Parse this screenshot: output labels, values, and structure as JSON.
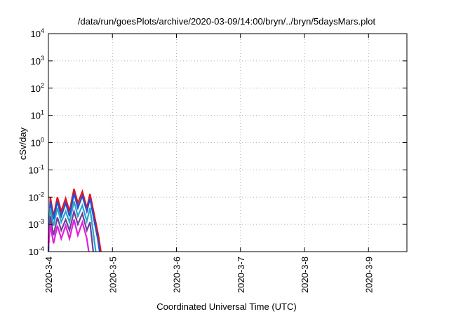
{
  "chart_data": {
    "type": "line",
    "title": "/data/run/goesPlots/archive/2020-03-09/14:00/bryn/../bryn/5daysMars.plot",
    "xlabel": "Coordinated Universal Time (UTC)",
    "ylabel": "cSv/day",
    "yscale": "log",
    "ylim": [
      0.0001,
      10000
    ],
    "xlim": [
      0,
      5.6
    ],
    "x_ticks": [
      {
        "value": 0,
        "label": "2020-3-4"
      },
      {
        "value": 1,
        "label": "2020-3-5"
      },
      {
        "value": 2,
        "label": "2020-3-6"
      },
      {
        "value": 3,
        "label": "2020-3-7"
      },
      {
        "value": 4,
        "label": "2020-3-8"
      },
      {
        "value": 5,
        "label": "2020-3-9"
      }
    ],
    "y_ticks": [
      {
        "value": 0.0001,
        "base": "10",
        "exp": "-4"
      },
      {
        "value": 0.001,
        "base": "10",
        "exp": "-3"
      },
      {
        "value": 0.01,
        "base": "10",
        "exp": "-2"
      },
      {
        "value": 0.1,
        "base": "10",
        "exp": "-1"
      },
      {
        "value": 1,
        "base": "10",
        "exp": "0"
      },
      {
        "value": 10,
        "base": "10",
        "exp": "1"
      },
      {
        "value": 100,
        "base": "10",
        "exp": "2"
      },
      {
        "value": 1000,
        "base": "10",
        "exp": "3"
      },
      {
        "value": 10000,
        "base": "10",
        "exp": "4"
      }
    ],
    "grid": true,
    "legend": "none",
    "series": [
      {
        "color": "#e8121a",
        "points": [
          [
            0.0,
            0.0001
          ],
          [
            0.03,
            0.01
          ],
          [
            0.08,
            0.002
          ],
          [
            0.14,
            0.01
          ],
          [
            0.2,
            0.003
          ],
          [
            0.27,
            0.009
          ],
          [
            0.33,
            0.003
          ],
          [
            0.4,
            0.02
          ],
          [
            0.46,
            0.006
          ],
          [
            0.53,
            0.016
          ],
          [
            0.6,
            0.004
          ],
          [
            0.65,
            0.013
          ],
          [
            0.72,
            0.002
          ],
          [
            0.78,
            0.0004
          ],
          [
            0.82,
            0.0001
          ]
        ]
      },
      {
        "color": "#1f4fd6",
        "points": [
          [
            0.0,
            0.0001
          ],
          [
            0.03,
            0.007
          ],
          [
            0.08,
            0.0015
          ],
          [
            0.14,
            0.007
          ],
          [
            0.2,
            0.002
          ],
          [
            0.27,
            0.006
          ],
          [
            0.33,
            0.002
          ],
          [
            0.4,
            0.014
          ],
          [
            0.46,
            0.004
          ],
          [
            0.53,
            0.011
          ],
          [
            0.6,
            0.003
          ],
          [
            0.65,
            0.009
          ],
          [
            0.72,
            0.0012
          ],
          [
            0.77,
            0.0003
          ],
          [
            0.8,
            0.0001
          ]
        ]
      },
      {
        "color": "#2aa4c8",
        "points": [
          [
            0.0,
            0.0003
          ],
          [
            0.03,
            0.004
          ],
          [
            0.08,
            0.0009
          ],
          [
            0.14,
            0.004
          ],
          [
            0.2,
            0.0012
          ],
          [
            0.27,
            0.003
          ],
          [
            0.33,
            0.0012
          ],
          [
            0.4,
            0.007
          ],
          [
            0.46,
            0.002
          ],
          [
            0.53,
            0.005
          ],
          [
            0.6,
            0.0013
          ],
          [
            0.65,
            0.004
          ],
          [
            0.7,
            0.0005
          ],
          [
            0.74,
            0.0001
          ]
        ]
      },
      {
        "color": "#6a3fa0",
        "points": [
          [
            0.0,
            0.0002
          ],
          [
            0.03,
            0.002
          ],
          [
            0.08,
            0.0004
          ],
          [
            0.14,
            0.0018
          ],
          [
            0.2,
            0.0006
          ],
          [
            0.27,
            0.0015
          ],
          [
            0.33,
            0.0006
          ],
          [
            0.4,
            0.003
          ],
          [
            0.46,
            0.001
          ],
          [
            0.53,
            0.0025
          ],
          [
            0.6,
            0.0006
          ],
          [
            0.65,
            0.0012
          ],
          [
            0.7,
            0.0001
          ]
        ]
      },
      {
        "color": "#e020d8",
        "points": [
          [
            0.0,
            0.00015
          ],
          [
            0.03,
            0.001
          ],
          [
            0.08,
            0.0002
          ],
          [
            0.14,
            0.0009
          ],
          [
            0.2,
            0.0003
          ],
          [
            0.27,
            0.0009
          ],
          [
            0.33,
            0.0003
          ],
          [
            0.4,
            0.0015
          ],
          [
            0.46,
            0.0004
          ],
          [
            0.53,
            0.0012
          ],
          [
            0.6,
            0.0003
          ],
          [
            0.63,
            0.0001
          ]
        ]
      }
    ]
  }
}
